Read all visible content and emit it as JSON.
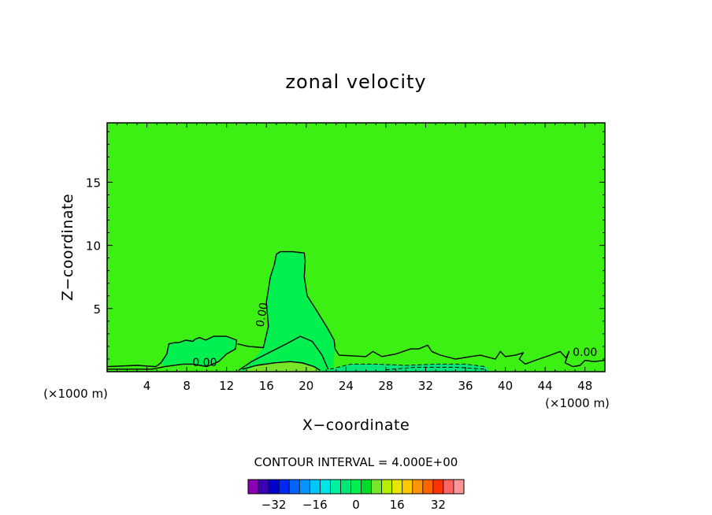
{
  "chart_data": {
    "type": "contour",
    "title": "zonal velocity",
    "xlabel": "X−coordinate",
    "ylabel": "Z−coordinate",
    "x_unit_label": "(×1000 m)",
    "xlim": [
      0,
      50
    ],
    "ylim": [
      0,
      19.7
    ],
    "x_ticks": [
      4,
      8,
      12,
      16,
      20,
      24,
      28,
      32,
      36,
      40,
      44,
      48
    ],
    "y_ticks": [
      5,
      10,
      15
    ],
    "background_value": 0,
    "contour_labels": [
      {
        "text": "0.00",
        "x": 15.6,
        "z": 4.5,
        "rotate": -80
      },
      {
        "text": "0.00",
        "x": 9.8,
        "z": 0.7,
        "rotate": 0
      },
      {
        "text": "0.00",
        "x": 48.0,
        "z": 1.5,
        "rotate": 0
      }
    ],
    "contours": [
      {
        "level": 0,
        "style": "solid",
        "points": [
          [
            13.1,
            2.2
          ],
          [
            14.2,
            2.0
          ],
          [
            15.7,
            1.9
          ],
          [
            15.9,
            2.6
          ],
          [
            16.2,
            3.6
          ],
          [
            16.0,
            5.5
          ],
          [
            16.4,
            7.5
          ],
          [
            16.8,
            8.5
          ],
          [
            17.0,
            9.3
          ],
          [
            17.4,
            9.5
          ],
          [
            18.6,
            9.5
          ],
          [
            19.8,
            9.4
          ],
          [
            19.9,
            8.8
          ],
          [
            19.8,
            7.5
          ],
          [
            20.1,
            6.0
          ],
          [
            21.0,
            4.9
          ],
          [
            22.1,
            3.5
          ],
          [
            22.8,
            2.5
          ],
          [
            22.9,
            1.8
          ],
          [
            23.3,
            1.3
          ],
          [
            26.0,
            1.2
          ],
          [
            26.7,
            1.6
          ],
          [
            27.6,
            1.2
          ],
          [
            29.0,
            1.4
          ],
          [
            30.5,
            1.8
          ],
          [
            31.3,
            1.8
          ],
          [
            32.2,
            2.1
          ],
          [
            32.6,
            1.6
          ],
          [
            33.5,
            1.3
          ],
          [
            35.0,
            1.0
          ],
          [
            36.5,
            1.2
          ],
          [
            37.5,
            1.3
          ],
          [
            39.0,
            1.0
          ],
          [
            39.5,
            1.6
          ],
          [
            40.0,
            1.2
          ],
          [
            41.0,
            1.3
          ],
          [
            41.8,
            1.5
          ],
          [
            41.4,
            1.0
          ],
          [
            42.0,
            0.6
          ],
          [
            43.0,
            0.9
          ],
          [
            44.5,
            1.3
          ],
          [
            45.5,
            1.6
          ],
          [
            46.1,
            1.1
          ],
          [
            46.4,
            1.6
          ],
          [
            46.0,
            0.7
          ],
          [
            46.8,
            0.4
          ],
          [
            47.5,
            0.5
          ],
          [
            48.0,
            0.9
          ],
          [
            48.9,
            0.8
          ],
          [
            50.0,
            0.9
          ]
        ]
      },
      {
        "level": 0,
        "style": "solid",
        "points": [
          [
            0.0,
            0.4
          ],
          [
            3.0,
            0.5
          ],
          [
            4.9,
            0.4
          ],
          [
            5.4,
            0.7
          ],
          [
            6.0,
            1.4
          ],
          [
            6.2,
            2.2
          ],
          [
            6.8,
            2.3
          ],
          [
            7.2,
            2.3
          ],
          [
            7.9,
            2.5
          ],
          [
            8.6,
            2.4
          ],
          [
            8.9,
            2.6
          ],
          [
            9.3,
            2.7
          ],
          [
            9.9,
            2.5
          ],
          [
            10.7,
            2.8
          ],
          [
            12.0,
            2.8
          ],
          [
            13.0,
            2.5
          ],
          [
            12.9,
            1.8
          ],
          [
            12.0,
            1.4
          ],
          [
            11.2,
            0.8
          ],
          [
            10.0,
            0.4
          ],
          [
            8.6,
            0.6
          ],
          [
            7.6,
            0.6
          ],
          [
            5.8,
            0.4
          ],
          [
            4.5,
            0.2
          ],
          [
            0.0,
            0.2
          ]
        ]
      },
      {
        "level": 0,
        "style": "solid",
        "points": [
          [
            13.2,
            0.1
          ],
          [
            14.5,
            0.8
          ],
          [
            16.0,
            1.4
          ],
          [
            18.0,
            2.2
          ],
          [
            19.4,
            2.8
          ],
          [
            20.6,
            2.4
          ],
          [
            21.6,
            1.3
          ],
          [
            22.2,
            0.2
          ]
        ]
      },
      {
        "level": 4,
        "style": "solid",
        "points": [
          [
            13.6,
            0.2
          ],
          [
            15.0,
            0.5
          ],
          [
            16.8,
            0.7
          ],
          [
            18.4,
            0.8
          ],
          [
            19.6,
            0.7
          ],
          [
            20.8,
            0.4
          ],
          [
            21.4,
            0.1
          ]
        ]
      },
      {
        "level": -4,
        "style": "dashed",
        "points": [
          [
            22.4,
            0.2
          ],
          [
            24.5,
            0.6
          ],
          [
            27.0,
            0.6
          ],
          [
            30.0,
            0.5
          ],
          [
            33.0,
            0.6
          ],
          [
            36.0,
            0.6
          ],
          [
            38.0,
            0.4
          ]
        ]
      },
      {
        "level": -4,
        "style": "dashed",
        "points": [
          [
            28.0,
            0.15
          ],
          [
            31.0,
            0.35
          ],
          [
            35.0,
            0.35
          ],
          [
            38.0,
            0.2
          ]
        ]
      }
    ],
    "fill_regions": [
      {
        "color": "#00f050",
        "points": [
          [
            15.7,
            1.9
          ],
          [
            15.9,
            2.6
          ],
          [
            16.2,
            3.6
          ],
          [
            16.0,
            5.5
          ],
          [
            16.4,
            7.5
          ],
          [
            16.8,
            8.5
          ],
          [
            17.0,
            9.3
          ],
          [
            17.4,
            9.5
          ],
          [
            18.6,
            9.5
          ],
          [
            19.8,
            9.4
          ],
          [
            19.9,
            8.8
          ],
          [
            19.8,
            7.5
          ],
          [
            20.1,
            6.0
          ],
          [
            21.0,
            4.9
          ],
          [
            22.1,
            3.5
          ],
          [
            22.8,
            2.5
          ],
          [
            22.9,
            1.8
          ],
          [
            22.6,
            0.0
          ],
          [
            13.4,
            0.0
          ],
          [
            14.5,
            0.8
          ],
          [
            15.2,
            1.4
          ]
        ]
      },
      {
        "color": "#00f050",
        "points": [
          [
            5.4,
            0.7
          ],
          [
            6.0,
            1.4
          ],
          [
            6.2,
            2.2
          ],
          [
            6.8,
            2.3
          ],
          [
            7.9,
            2.5
          ],
          [
            8.9,
            2.6
          ],
          [
            9.9,
            2.5
          ],
          [
            10.7,
            2.8
          ],
          [
            12.0,
            2.8
          ],
          [
            13.0,
            2.5
          ],
          [
            12.9,
            1.8
          ],
          [
            12.0,
            1.4
          ],
          [
            11.2,
            0.8
          ],
          [
            10.0,
            0.4
          ],
          [
            8.6,
            0.6
          ],
          [
            7.6,
            0.6
          ],
          [
            5.8,
            0.4
          ]
        ]
      },
      {
        "color": "#78e628",
        "points": [
          [
            13.6,
            0.0
          ],
          [
            15.0,
            0.5
          ],
          [
            16.8,
            0.7
          ],
          [
            18.4,
            0.8
          ],
          [
            19.6,
            0.7
          ],
          [
            20.8,
            0.4
          ],
          [
            21.4,
            0.0
          ]
        ]
      },
      {
        "color": "#00e678",
        "points": [
          [
            22.4,
            0.0
          ],
          [
            22.4,
            0.2
          ],
          [
            24.5,
            0.6
          ],
          [
            27.0,
            0.6
          ],
          [
            30.0,
            0.5
          ],
          [
            33.0,
            0.6
          ],
          [
            36.0,
            0.6
          ],
          [
            38.0,
            0.4
          ],
          [
            38.4,
            0.0
          ]
        ]
      }
    ],
    "contour_interval_label": "CONTOUR INTERVAL = 4.000E+00",
    "colorbar": {
      "colors": [
        "#8c00b4",
        "#3c00b4",
        "#0000c8",
        "#0028f0",
        "#0064ff",
        "#0096ff",
        "#00c8ff",
        "#00e6e6",
        "#00f0a0",
        "#00e678",
        "#00f050",
        "#00dc28",
        "#78e628",
        "#b4f000",
        "#e6e600",
        "#ffc800",
        "#ff9600",
        "#ff6400",
        "#ff3200",
        "#ff6464",
        "#ff9696"
      ],
      "tick_labels": [
        "−32",
        "−16",
        "0",
        "16",
        "32"
      ]
    }
  }
}
